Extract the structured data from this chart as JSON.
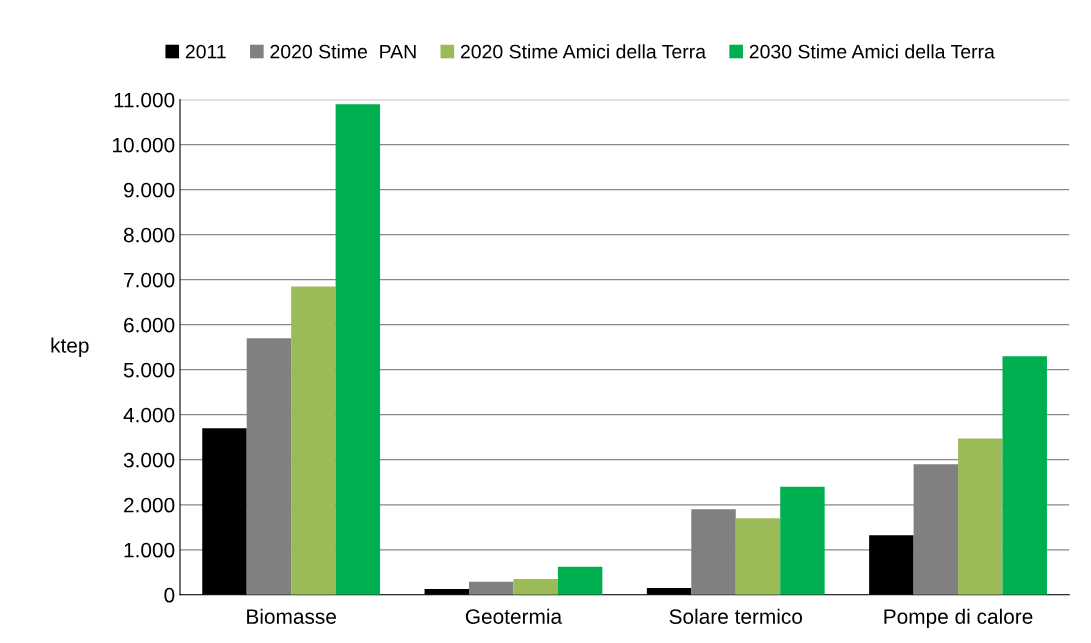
{
  "chart_data": {
    "type": "bar",
    "ylabel": "ktep",
    "categories": [
      "Biomasse",
      "Geotermia",
      "Solare termico",
      "Pompe di calore"
    ],
    "series": [
      {
        "name": "2011",
        "color": "#000000",
        "values": [
          3700,
          130,
          150,
          1320
        ]
      },
      {
        "name": "2020 Stime  PAN",
        "color": "#808080",
        "values": [
          5700,
          290,
          1900,
          2900
        ]
      },
      {
        "name": "2020 Stime Amici della Terra",
        "color": "#9bbb59",
        "values": [
          6850,
          350,
          1700,
          3470
        ]
      },
      {
        "name": "2030 Stime Amici della Terra",
        "color": "#00b050",
        "values": [
          10900,
          620,
          2400,
          5300
        ]
      }
    ],
    "ylim": [
      0,
      11000
    ],
    "yticks": [
      {
        "value": 0,
        "label": "0"
      },
      {
        "value": 1000,
        "label": "1.000"
      },
      {
        "value": 2000,
        "label": "2.000"
      },
      {
        "value": 3000,
        "label": "3.000"
      },
      {
        "value": 4000,
        "label": "4.000"
      },
      {
        "value": 5000,
        "label": "5.000"
      },
      {
        "value": 6000,
        "label": "6.000"
      },
      {
        "value": 7000,
        "label": "7.000"
      },
      {
        "value": 8000,
        "label": "8.000"
      },
      {
        "value": 9000,
        "label": "9.000"
      },
      {
        "value": 10000,
        "label": "10.000"
      },
      {
        "value": 11000,
        "label": "11.000"
      }
    ],
    "grid": "y",
    "legend": "top"
  }
}
